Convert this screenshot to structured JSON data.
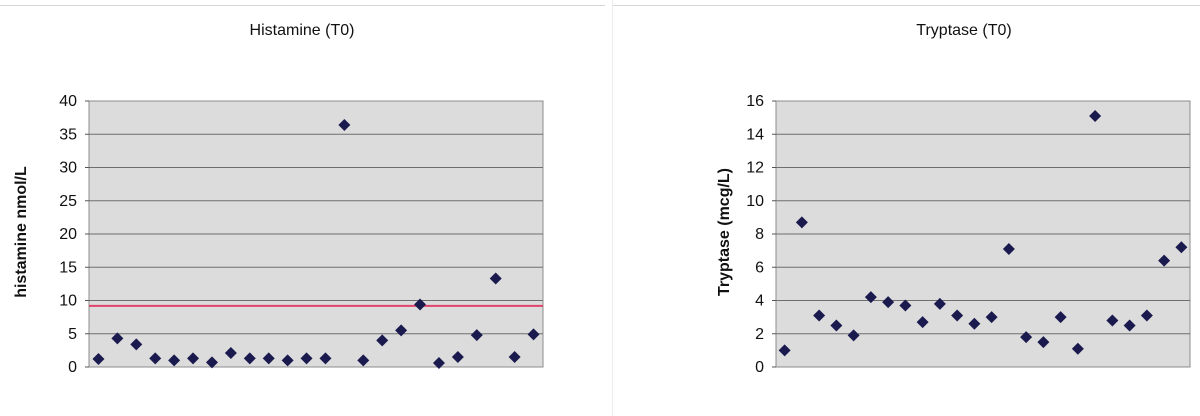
{
  "chart_data": [
    {
      "type": "scatter",
      "title": "Histamine (T0)",
      "xlabel": "",
      "ylabel": "histamine nmol/L",
      "ylim": [
        0,
        40
      ],
      "yticks": [
        0,
        5,
        10,
        15,
        20,
        25,
        30,
        35,
        40
      ],
      "grid": true,
      "reference_line": {
        "y": 9.2,
        "color": "#e0436c"
      },
      "marker_color": "#1a1a4e",
      "values": [
        1.2,
        4.3,
        3.4,
        1.3,
        1.0,
        1.3,
        0.7,
        2.1,
        1.3,
        1.3,
        1.0,
        1.3,
        1.3,
        36.4,
        1.0,
        4.0,
        5.5,
        9.4,
        0.6,
        1.5,
        4.8,
        13.3,
        1.5,
        4.9
      ]
    },
    {
      "type": "scatter",
      "title": "Tryptase (T0)",
      "xlabel": "",
      "ylabel": "Tryptase (mcg/L)",
      "ylim": [
        0,
        16
      ],
      "yticks": [
        0,
        2,
        4,
        6,
        8,
        10,
        12,
        14,
        16
      ],
      "grid": true,
      "marker_color": "#1a1a4e",
      "values": [
        1.0,
        8.7,
        3.1,
        2.5,
        1.9,
        4.2,
        3.9,
        3.7,
        2.7,
        3.8,
        3.1,
        2.6,
        3.0,
        7.1,
        1.8,
        1.5,
        3.0,
        1.1,
        15.1,
        2.8,
        2.5,
        3.1,
        6.4,
        7.2
      ]
    }
  ]
}
